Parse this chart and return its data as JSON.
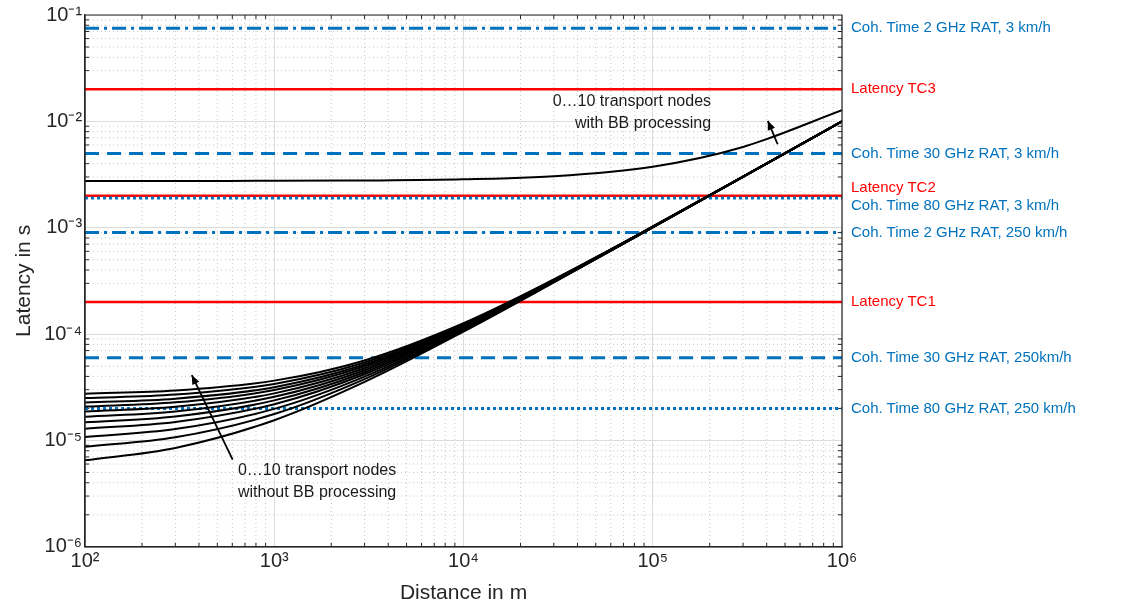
{
  "chart_data": {
    "type": "line",
    "xlabel": "Distance in m",
    "ylabel": "Latency in s",
    "log": "xy",
    "grid": true,
    "legend": false,
    "marker": "none",
    "line_style": "solid",
    "xlim": [
      100,
      1000000
    ],
    "ylim": [
      1e-06,
      0.1
    ],
    "xticks": [
      {
        "value": 100,
        "label": "10²"
      },
      {
        "value": 1000,
        "label": "10³"
      },
      {
        "value": 10000,
        "label": "10⁴"
      },
      {
        "value": 100000,
        "label": "10⁵"
      },
      {
        "value": 1000000,
        "label": "10⁶"
      }
    ],
    "yticks": [
      {
        "value": 1e-06,
        "label": "10⁻⁶"
      },
      {
        "value": 1e-05,
        "label": "10⁻⁵"
      },
      {
        "value": 0.0001,
        "label": "10⁻⁴"
      },
      {
        "value": 0.001,
        "label": "10⁻³"
      },
      {
        "value": 0.01,
        "label": "10⁻²"
      },
      {
        "value": 0.1,
        "label": "10⁻¹"
      }
    ],
    "x": [
      100,
      300,
      1000,
      3000,
      10000,
      30000,
      100000,
      300000,
      1000000
    ],
    "series": [
      {
        "color": "#000000",
        "values": [
          0.00275,
          0.00275,
          0.00276,
          0.00278,
          0.00285,
          0.00305,
          0.00375,
          0.00575,
          0.01275
        ]
      },
      {
        "color": "#000000",
        "values": [
          6.5e-06,
          8.5e-06,
          1.55e-05,
          3.55e-05,
          0.0001055,
          0.0003055,
          0.001005,
          0.003,
          0.01
        ]
      },
      {
        "color": "#000000",
        "values": [
          8.7e-06,
          1.07e-05,
          1.77e-05,
          3.77e-05,
          0.0001077,
          0.000308,
          0.001008,
          0.003,
          0.01
        ]
      },
      {
        "color": "#000000",
        "values": [
          1.08e-05,
          1.28e-05,
          1.98e-05,
          3.98e-05,
          0.0001098,
          0.00031,
          0.00101,
          0.00301,
          0.01
        ]
      },
      {
        "color": "#000000",
        "values": [
          1.29e-05,
          1.49e-05,
          2.19e-05,
          4.19e-05,
          0.0001119,
          0.000312,
          0.001012,
          0.00301,
          0.01
        ]
      },
      {
        "color": "#000000",
        "values": [
          1.48e-05,
          1.68e-05,
          2.38e-05,
          4.38e-05,
          0.0001138,
          0.000314,
          0.001014,
          0.00301,
          0.01
        ]
      },
      {
        "color": "#000000",
        "values": [
          1.67e-05,
          1.87e-05,
          2.57e-05,
          4.57e-05,
          0.0001157,
          0.000316,
          0.001016,
          0.00302,
          0.01
        ]
      },
      {
        "color": "#000000",
        "values": [
          1.87e-05,
          2.07e-05,
          2.77e-05,
          4.77e-05,
          0.0001177,
          0.000318,
          0.001018,
          0.00302,
          0.01
        ]
      },
      {
        "color": "#000000",
        "values": [
          2.08e-05,
          2.28e-05,
          2.98e-05,
          4.98e-05,
          0.0001198,
          0.00032,
          0.00102,
          0.00302,
          0.01
        ]
      },
      {
        "color": "#000000",
        "values": [
          2.27e-05,
          2.47e-05,
          3.17e-05,
          5.17e-05,
          0.0001217,
          0.000322,
          0.001022,
          0.00302,
          0.01
        ]
      },
      {
        "color": "#000000",
        "values": [
          2.5e-05,
          2.7e-05,
          3.4e-05,
          5.4e-05,
          0.000124,
          0.000324,
          0.001024,
          0.00302,
          0.01
        ]
      },
      {
        "color": "#000000",
        "values": [
          2.75e-05,
          2.95e-05,
          3.65e-05,
          5.65e-05,
          0.0001265,
          0.000327,
          0.001027,
          0.00303,
          0.01
        ]
      }
    ],
    "ref_lines": [
      {
        "axis": "y",
        "value": 0.075,
        "label": "Coh. Time 2 GHz RAT, 3 km/h",
        "color": "#0072bd",
        "line_style": "dashdot"
      },
      {
        "axis": "y",
        "value": 0.02,
        "label": "Latency TC3",
        "color": "#ff0000",
        "line_style": "solid"
      },
      {
        "axis": "y",
        "value": 0.005,
        "label": "Coh. Time 30 GHz RAT, 3 km/h",
        "color": "#0072bd",
        "line_style": "dashed"
      },
      {
        "axis": "y",
        "value": 0.002,
        "label": "Latency TC2",
        "color": "#ff0000",
        "line_style": "solid"
      },
      {
        "axis": "y",
        "value": 0.0019,
        "label": "Coh. Time 80 GHz RAT, 3 km/h",
        "color": "#0072bd",
        "line_style": "dotted"
      },
      {
        "axis": "y",
        "value": 0.0009,
        "label": "Coh. Time 2 GHz RAT, 250 km/h",
        "color": "#0072bd",
        "line_style": "dashdot"
      },
      {
        "axis": "y",
        "value": 0.0002,
        "label": "Latency TC1",
        "color": "#ff0000",
        "line_style": "solid"
      },
      {
        "axis": "y",
        "value": 6e-05,
        "label": "Coh. Time 30 GHz RAT, 250km/h",
        "color": "#0072bd",
        "line_style": "dashed"
      },
      {
        "axis": "y",
        "value": 2e-05,
        "label": "Coh. Time 80 GHz RAT, 250 km/h",
        "color": "#0072bd",
        "line_style": "dotted"
      }
    ],
    "annotations": [
      "0…10 transport nodes\nwith BB processing",
      "0…10 transport nodes\nwithout BB processing"
    ]
  }
}
